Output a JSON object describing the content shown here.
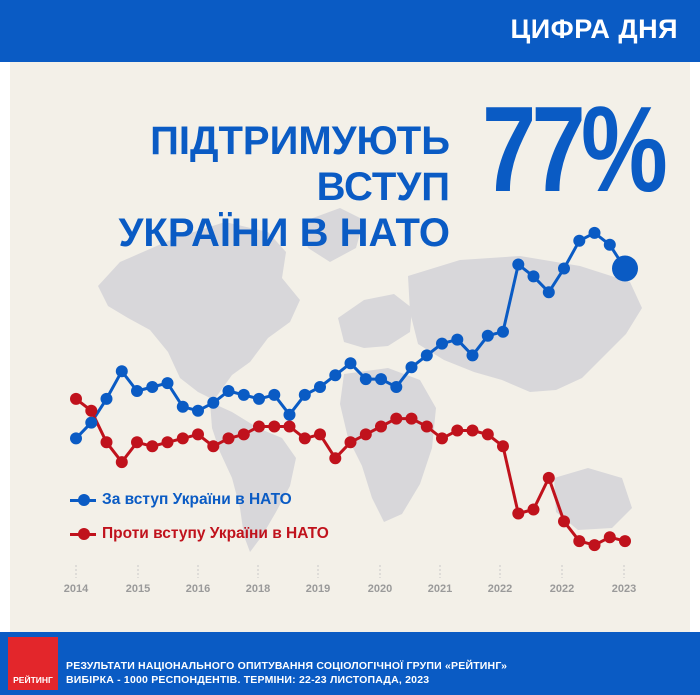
{
  "header": {
    "title": "ЦИФРА ДНЯ"
  },
  "headline": {
    "line1": "ПІДТРИМУЮТЬ ВСТУП",
    "line2": "УКРАЇНИ В НАТО"
  },
  "big_number": "77%",
  "colors": {
    "brand_blue": "#0a5bc4",
    "support": "#0a5bc4",
    "oppose": "#c0121c",
    "logo_red": "#e3262b"
  },
  "chart_data": {
    "type": "line",
    "title": "",
    "xlabel": "",
    "ylabel": "",
    "x_tick_labels": [
      "2014",
      "2015",
      "2016",
      "2018",
      "2019",
      "2020",
      "2021",
      "2022",
      "2022",
      "2023"
    ],
    "ylim": [
      0,
      100
    ],
    "grid": false,
    "legend_position": "bottom-left",
    "series": [
      {
        "name": "За вступ України в НАТО",
        "values": [
          34,
          38,
          44,
          51,
          46,
          47,
          48,
          42,
          41,
          43,
          46,
          45,
          44,
          45,
          40,
          45,
          47,
          50,
          53,
          49,
          49,
          47,
          52,
          55,
          58,
          59,
          55,
          60,
          61,
          78,
          75,
          71,
          77,
          84,
          86,
          83,
          77
        ]
      },
      {
        "name": "Проти вступу України в НАТО",
        "values": [
          44,
          41,
          33,
          28,
          33,
          32,
          33,
          34,
          35,
          32,
          34,
          35,
          37,
          37,
          37,
          34,
          35,
          29,
          33,
          35,
          37,
          39,
          39,
          37,
          34,
          36,
          36,
          35,
          32,
          15,
          16,
          24,
          13,
          8,
          7,
          9,
          8
        ]
      }
    ]
  },
  "legend": {
    "support_label": "За вступ України в НАТО",
    "oppose_label": "Проти вступу України в НАТО"
  },
  "footer": {
    "logo_text": "РЕЙТИНГ",
    "line1": "РЕЗУЛЬТАТИ НАЦІОНАЛЬНОГО ОПИТУВАННЯ СОЦІОЛОГІЧНОЇ ГРУПИ «РЕЙТИНГ»",
    "line2": "ВИБІРКА - 1000 РЕСПОНДЕНТІВ. ТЕРМІНИ: 22-23 ЛИСТОПАДА, 2023"
  }
}
